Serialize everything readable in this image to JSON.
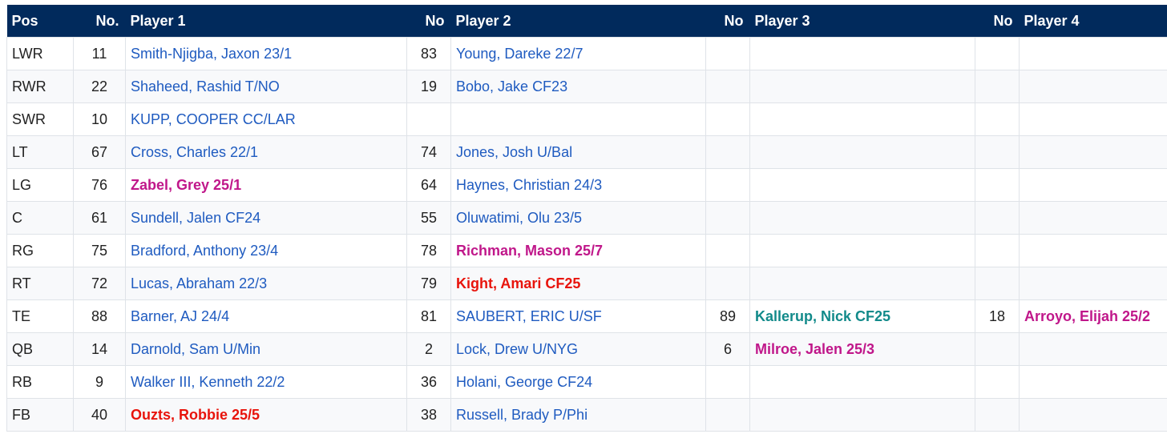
{
  "header": {
    "pos": "Pos",
    "no1": "No.",
    "player1": "Player 1",
    "no2": "No",
    "player2": "Player 2",
    "no3": "No",
    "player3": "Player 3",
    "no4": "No",
    "player4": "Player 4"
  },
  "colors": {
    "header_bg": "#012a5c",
    "link_blue": "#1f5bc0",
    "magenta": "#c0178a",
    "red": "#e8140c",
    "teal": "#128a8a"
  },
  "rows": [
    {
      "pos": "LWR",
      "no1": "11",
      "p1": "Smith-Njigba, Jaxon 23/1",
      "no2": "83",
      "p2": "Young, Dareke 22/7",
      "no3": "",
      "p3": "",
      "no4": "",
      "p4": ""
    },
    {
      "pos": "RWR",
      "no1": "22",
      "p1": "Shaheed, Rashid T/NO",
      "no2": "19",
      "p2": "Bobo, Jake CF23",
      "no3": "",
      "p3": "",
      "no4": "",
      "p4": ""
    },
    {
      "pos": "SWR",
      "no1": "10",
      "p1": "KUPP, COOPER CC/LAR",
      "no2": "",
      "p2": "",
      "no3": "",
      "p3": "",
      "no4": "",
      "p4": ""
    },
    {
      "pos": "LT",
      "no1": "67",
      "p1": "Cross, Charles 22/1",
      "no2": "74",
      "p2": "Jones, Josh U/Bal",
      "no3": "",
      "p3": "",
      "no4": "",
      "p4": ""
    },
    {
      "pos": "LG",
      "no1": "76",
      "p1": "Zabel, Grey 25/1",
      "no2": "64",
      "p2": "Haynes, Christian 24/3",
      "no3": "",
      "p3": "",
      "no4": "",
      "p4": ""
    },
    {
      "pos": "C",
      "no1": "61",
      "p1": "Sundell, Jalen CF24",
      "no2": "55",
      "p2": "Oluwatimi, Olu 23/5",
      "no3": "",
      "p3": "",
      "no4": "",
      "p4": ""
    },
    {
      "pos": "RG",
      "no1": "75",
      "p1": "Bradford, Anthony 23/4",
      "no2": "78",
      "p2": "Richman, Mason 25/7",
      "no3": "",
      "p3": "",
      "no4": "",
      "p4": ""
    },
    {
      "pos": "RT",
      "no1": "72",
      "p1": "Lucas, Abraham 22/3",
      "no2": "79",
      "p2": "Kight, Amari CF25",
      "no3": "",
      "p3": "",
      "no4": "",
      "p4": ""
    },
    {
      "pos": "TE",
      "no1": "88",
      "p1": "Barner, AJ 24/4",
      "no2": "81",
      "p2": "SAUBERT, ERIC U/SF",
      "no3": "89",
      "p3": "Kallerup, Nick CF25",
      "no4": "18",
      "p4": "Arroyo, Elijah 25/2"
    },
    {
      "pos": "QB",
      "no1": "14",
      "p1": "Darnold, Sam U/Min",
      "no2": "2",
      "p2": "Lock, Drew U/NYG",
      "no3": "6",
      "p3": "Milroe, Jalen 25/3",
      "no4": "",
      "p4": ""
    },
    {
      "pos": "RB",
      "no1": "9",
      "p1": "Walker III, Kenneth 22/2",
      "no2": "36",
      "p2": "Holani, George CF24",
      "no3": "",
      "p3": "",
      "no4": "",
      "p4": ""
    },
    {
      "pos": "FB",
      "no1": "40",
      "p1": "Ouzts, Robbie 25/5",
      "no2": "38",
      "p2": "Russell, Brady P/Phi",
      "no3": "",
      "p3": "",
      "no4": "",
      "p4": ""
    }
  ]
}
